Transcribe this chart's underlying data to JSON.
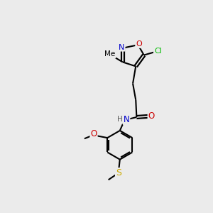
{
  "background_color": "#ebebeb",
  "bond_color": "#000000",
  "atom_colors": {
    "N": "#0000cc",
    "O": "#cc0000",
    "S": "#ccaa00",
    "Cl": "#00bb00",
    "C": "#000000",
    "H": "#555555"
  },
  "figsize": [
    3.0,
    3.0
  ],
  "dpi": 100,
  "xlim": [
    0,
    10
  ],
  "ylim": [
    0,
    10
  ]
}
